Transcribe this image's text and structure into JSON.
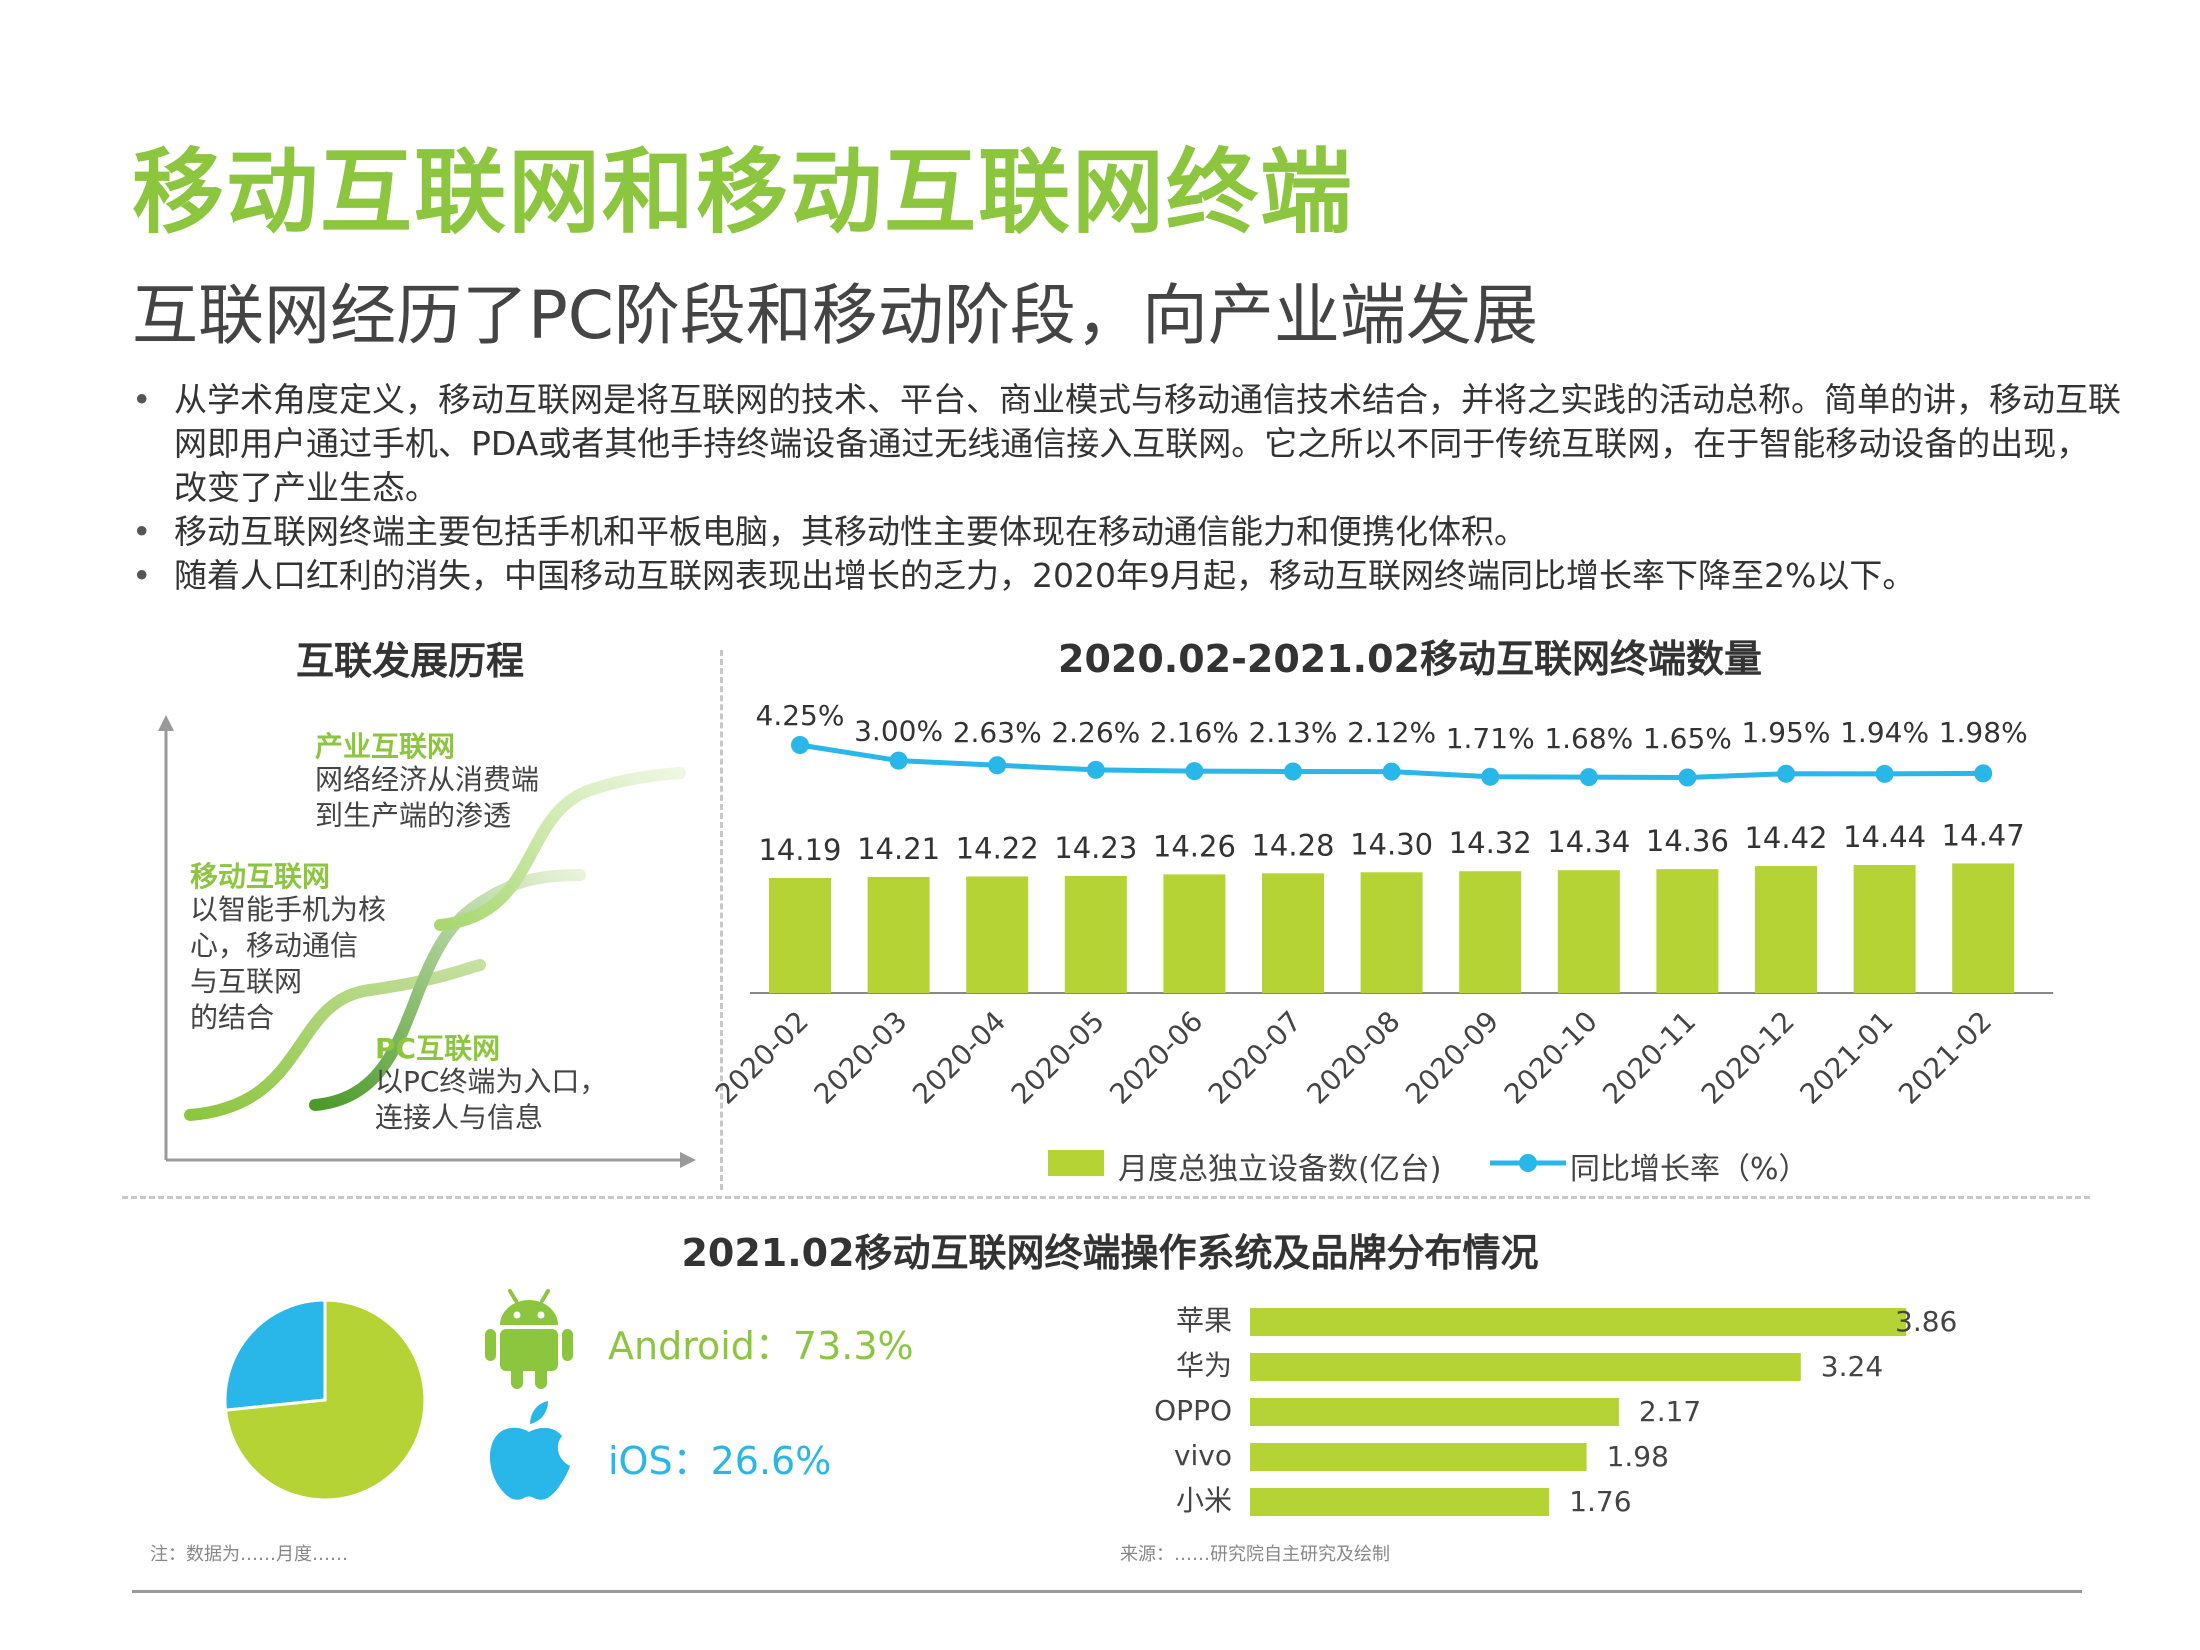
{
  "header": {
    "title": "移动互联网和移动互联网终端",
    "subtitle": "互联网经历了PC阶段和移动阶段，向产业端发展"
  },
  "bullets": [
    "从学术角度定义，移动互联网是将互联网的技术、平台、商业模式与移动通信技术结合，并将之实践的活动总称。简单的讲，移动互联网即用户通过手机、PDA或者其他手持终端设备通过无线通信接入互联网。它之所以不同于传统互联网，在于智能移动设备的出现，改变了产业生态。",
    "移动互联网终端主要包括手机和平板电脑，其移动性主要体现在移动通信能力和便携化体积。",
    "随着人口红利的消失，中国移动互联网表现出增长的乏力，2020年9月起，移动互联网终端同比增长率下降至2%以下。"
  ],
  "history": {
    "title": "互联发展历程",
    "stages": [
      {
        "title": "产业互联网",
        "desc": "网络经济从消费端\n到生产端的渗透"
      },
      {
        "title": "移动互联网",
        "desc": "以智能手机为核\n心，移动通信\n与互联网\n的结合"
      },
      {
        "title": "PC互联网",
        "desc": "以PC终端为入口，\n连接人与信息"
      }
    ]
  },
  "terminal_chart": {
    "title": "2020.02-2021.02移动互联网终端数量",
    "legend_bar": "月度总独立设备数(亿台)",
    "legend_line": "同比增长率（%）"
  },
  "distribution": {
    "title": "2021.02移动互联网终端操作系统及品牌分布情况",
    "android_label": "Android：73.3%",
    "ios_label": "iOS：26.6%"
  },
  "footnotes": {
    "left": "注：数据为……月度……",
    "right": "来源：……研究院自主研究及绘制"
  },
  "colors": {
    "green": "#8cc63f",
    "bar_green": "#b5d334",
    "blue": "#29b6e8",
    "text": "#333333"
  },
  "icons": [
    "android-icon",
    "apple-icon"
  ],
  "chart_data": [
    {
      "type": "bar",
      "title": "2020.02-2021.02移动互联网终端数量",
      "categories": [
        "2020-02",
        "2020-03",
        "2020-04",
        "2020-05",
        "2020-06",
        "2020-07",
        "2020-08",
        "2020-09",
        "2020-10",
        "2020-11",
        "2020-12",
        "2021-01",
        "2021-02"
      ],
      "series": [
        {
          "name": "月度总独立设备数(亿台)",
          "type": "bar",
          "values": [
            14.19,
            14.21,
            14.22,
            14.23,
            14.26,
            14.28,
            14.3,
            14.32,
            14.34,
            14.36,
            14.42,
            14.44,
            14.47
          ]
        },
        {
          "name": "同比增长率（%）",
          "type": "line",
          "values": [
            4.25,
            3.0,
            2.63,
            2.26,
            2.16,
            2.13,
            2.12,
            1.71,
            1.68,
            1.65,
            1.95,
            1.94,
            1.98
          ]
        }
      ],
      "value_labels": [
        "14.19",
        "14.21",
        "14.22",
        "14.23",
        "14.26",
        "14.28",
        "14.30",
        "14.32",
        "14.34",
        "14.36",
        "14.42",
        "14.44",
        "14.47"
      ],
      "rate_labels": [
        "4.25%",
        "3.00%",
        "2.63%",
        "2.26%",
        "2.16%",
        "2.13%",
        "2.12%",
        "1.71%",
        "1.68%",
        "1.65%",
        "1.95%",
        "1.94%",
        "1.98%"
      ],
      "legend": "bottom"
    },
    {
      "type": "pie",
      "slices": [
        {
          "name": "Android",
          "value": 73.3,
          "color": "#b5d334"
        },
        {
          "name": "iOS",
          "value": 26.6,
          "color": "#29b6e8"
        }
      ]
    },
    {
      "type": "bar",
      "orientation": "horizontal",
      "categories": [
        "苹果",
        "华为",
        "OPPO",
        "vivo",
        "小米"
      ],
      "values": [
        3.86,
        3.24,
        2.17,
        1.98,
        1.76
      ],
      "value_labels": [
        "3.86",
        "3.24",
        "2.17",
        "1.98",
        "1.76"
      ],
      "xlim": [
        0,
        4
      ]
    }
  ]
}
